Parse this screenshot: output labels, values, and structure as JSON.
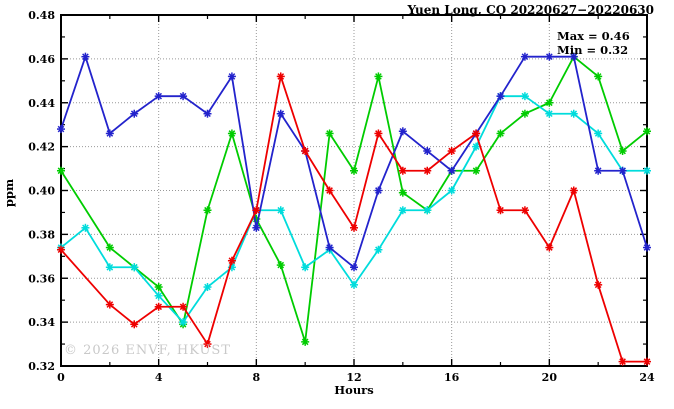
{
  "title": "Yuen Long, CO 20220627−20220630",
  "annotation": {
    "max_label": "Max = 0.46",
    "min_label": "Min = 0.32"
  },
  "watermark": "© 2026 ENVF, HKUST",
  "chart_data": {
    "type": "line",
    "title": "Yuen Long, CO 20220627-20220630",
    "xlabel": "Hours",
    "ylabel": "ppm",
    "xlim": [
      0,
      24
    ],
    "ylim": [
      0.32,
      0.48
    ],
    "xticks": [
      0,
      4,
      8,
      12,
      16,
      20,
      24
    ],
    "xminor_step": 2,
    "yticks": [
      0.32,
      0.34,
      0.36,
      0.38,
      0.4,
      0.42,
      0.44,
      0.46,
      0.48
    ],
    "yminor_step": 0.01,
    "grid": true,
    "legend": "none",
    "marker": "asterisk",
    "x": [
      0,
      1,
      2,
      3,
      4,
      5,
      6,
      7,
      8,
      9,
      10,
      11,
      12,
      13,
      14,
      15,
      16,
      17,
      18,
      19,
      20,
      21,
      22,
      23,
      24
    ],
    "series": [
      {
        "name": "green-series",
        "color": "#00cc00",
        "values": [
          0.409,
          null,
          0.374,
          0.365,
          0.356,
          0.339,
          0.391,
          0.426,
          0.387,
          0.366,
          0.331,
          0.426,
          0.409,
          0.452,
          0.399,
          0.391,
          0.409,
          0.409,
          0.426,
          0.435,
          0.44,
          0.461,
          0.452,
          0.418,
          0.427
        ]
      },
      {
        "name": "cyan-series",
        "color": "#00dcdc",
        "values": [
          0.374,
          0.383,
          0.365,
          0.365,
          0.352,
          0.34,
          0.356,
          0.365,
          0.391,
          0.391,
          0.365,
          0.373,
          0.357,
          0.373,
          0.391,
          0.391,
          0.4,
          0.42,
          0.443,
          0.443,
          0.435,
          0.435,
          0.426,
          0.409,
          0.409
        ]
      },
      {
        "name": "blue-series",
        "color": "#2323cc",
        "values": [
          0.428,
          0.461,
          0.426,
          0.435,
          0.443,
          0.443,
          0.435,
          0.452,
          0.383,
          0.435,
          0.418,
          0.374,
          0.365,
          0.4,
          0.427,
          0.418,
          0.409,
          0.426,
          0.443,
          0.461,
          0.461,
          0.461,
          0.409,
          0.409,
          0.374
        ]
      },
      {
        "name": "red-series",
        "color": "#ee0000",
        "values": [
          0.373,
          null,
          0.348,
          0.339,
          0.347,
          0.347,
          0.33,
          0.368,
          0.391,
          0.452,
          0.418,
          0.4,
          0.383,
          0.426,
          0.409,
          0.409,
          0.418,
          0.426,
          0.391,
          0.391,
          0.374,
          0.4,
          0.357,
          0.322,
          0.322
        ]
      }
    ],
    "stats": {
      "max": 0.46,
      "min": 0.32
    }
  }
}
